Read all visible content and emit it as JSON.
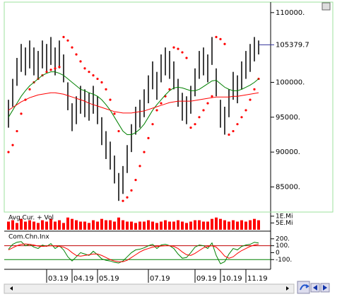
{
  "chart_data": [
    {
      "type": "ohlc",
      "categories": [
        null,
        null,
        null,
        null,
        null,
        null,
        null,
        null,
        null,
        "03.19",
        null,
        null,
        null,
        null,
        null,
        "04.19",
        null,
        null,
        null,
        null,
        null,
        "05.19",
        null,
        null,
        null,
        null,
        null,
        null,
        null,
        null,
        null,
        null,
        null,
        "07.19",
        null,
        null,
        null,
        null,
        null,
        null,
        null,
        null,
        null,
        null,
        "09.19",
        null,
        null,
        null,
        null,
        null,
        "10.19",
        null,
        null,
        null,
        null,
        null,
        "11.19",
        null,
        null,
        null
      ],
      "high": [
        97500,
        100500,
        103500,
        105500,
        105000,
        106000,
        105000,
        104500,
        106000,
        105500,
        106500,
        105000,
        106000,
        104000,
        100000,
        97000,
        98000,
        99500,
        99000,
        98500,
        99500,
        98000,
        95000,
        93000,
        91500,
        89500,
        87000,
        88000,
        91000,
        94000,
        96500,
        97500,
        99000,
        101000,
        103000,
        101500,
        104000,
        105000,
        104500,
        103000,
        100500,
        98500,
        98000,
        99500,
        102000,
        104500,
        105000,
        104000,
        106500,
        102000,
        97500,
        96500,
        99000,
        101500,
        101000,
        103000,
        104500,
        105500,
        106500,
        106000
      ],
      "low": [
        93500,
        96500,
        99500,
        101500,
        101000,
        102000,
        101000,
        100500,
        102000,
        101500,
        102500,
        101000,
        102000,
        100000,
        96000,
        93000,
        94000,
        95500,
        95000,
        94500,
        95500,
        94000,
        91000,
        89000,
        87500,
        85500,
        83000,
        84000,
        87000,
        90000,
        92500,
        93500,
        95000,
        97000,
        99000,
        97500,
        100000,
        101000,
        100500,
        99000,
        96500,
        94500,
        94000,
        95500,
        98000,
        100500,
        101000,
        100000,
        102500,
        98000,
        93500,
        92500,
        95000,
        97500,
        97000,
        99000,
        100500,
        101500,
        103000,
        104000
      ],
      "color": "#000000",
      "series": [
        {
          "color": "#ff0000",
          "marker": "dot",
          "values": [
            90000,
            91000,
            93000,
            95500,
            97500,
            99000,
            100000,
            100500,
            101000,
            101500,
            101800,
            102000,
            102200,
            106500,
            106000,
            105000,
            104000,
            103000,
            102000,
            101500,
            101000,
            100500,
            100000,
            99000,
            97500,
            95500,
            93000,
            83000,
            83500,
            84500,
            86000,
            88000,
            90000,
            92000,
            94000,
            96000,
            97000,
            98000,
            99000,
            105000,
            104800,
            104300,
            103500,
            93500,
            94000,
            95000,
            96000,
            97000,
            98000,
            106500,
            106200,
            105500,
            92500,
            93000,
            94000,
            95000,
            96000,
            97500,
            99000,
            100500
          ]
        },
        {
          "color": "#008000",
          "values": [
            95000,
            96000,
            97000,
            98000,
            98800,
            99500,
            100000,
            100500,
            101000,
            101300,
            101500,
            101500,
            101300,
            101000,
            100500,
            100000,
            99500,
            99000,
            98800,
            98500,
            98300,
            98000,
            97500,
            96800,
            96000,
            95000,
            94000,
            93000,
            92500,
            92500,
            92800,
            93300,
            94000,
            95000,
            96000,
            96800,
            97500,
            98200,
            98800,
            99200,
            99300,
            99200,
            99000,
            98800,
            98800,
            99000,
            99400,
            99800,
            100200,
            100300,
            99800,
            99300,
            99000,
            98800,
            98800,
            99000,
            99300,
            99600,
            100000,
            100500
          ]
        },
        {
          "color": "#ff0000",
          "values": [
            96000,
            96400,
            96800,
            97200,
            97500,
            97800,
            98000,
            98200,
            98300,
            98400,
            98500,
            98500,
            98400,
            98300,
            98100,
            97900,
            97700,
            97500,
            97300,
            97000,
            96800,
            96600,
            96400,
            96200,
            96000,
            95800,
            95700,
            95600,
            95600,
            95600,
            95700,
            95800,
            95900,
            96100,
            96300,
            96500,
            96700,
            96900,
            97100,
            97200,
            97300,
            97300,
            97300,
            97300,
            97400,
            97500,
            97600,
            97700,
            97800,
            97900,
            97900,
            97900,
            97900,
            98000,
            98000,
            98100,
            98200,
            98300,
            98400,
            98500
          ]
        }
      ],
      "last_price": 105379.7,
      "ylim": [
        81500,
        111300
      ],
      "yticks": [
        {
          "value": 110000,
          "label": "110000."
        },
        {
          "value": 100000,
          "label": "100000."
        },
        {
          "value": 95000,
          "label": "95000."
        },
        {
          "value": 90000,
          "label": "90000."
        },
        {
          "value": 85000,
          "label": "85000."
        }
      ]
    },
    {
      "type": "bar",
      "title": "Avg.Cur. + Vol",
      "color": "#ff0000",
      "values": [
        6,
        7,
        5,
        8,
        6,
        7,
        6,
        5,
        7,
        6,
        8,
        6,
        7,
        5,
        9,
        8,
        7,
        6,
        6,
        5,
        7,
        6,
        8,
        7,
        7,
        6,
        9,
        7,
        6,
        6,
        5,
        6,
        6,
        7,
        6,
        5,
        6,
        7,
        6,
        6,
        7,
        6,
        5,
        6,
        7,
        7,
        6,
        6,
        8,
        9,
        8,
        7,
        6,
        7,
        6,
        7,
        6,
        7,
        8,
        7
      ],
      "ylim": [
        0,
        12
      ],
      "yticks": [
        {
          "value": 10,
          "label": "1E.Mi"
        },
        {
          "value": 5,
          "label": "5E.Mi"
        }
      ]
    },
    {
      "type": "line",
      "title": "Com.Chn.Inx",
      "series": [
        {
          "color": "#008000",
          "values": [
            50,
            120,
            150,
            160,
            100,
            120,
            80,
            60,
            110,
            90,
            130,
            60,
            100,
            40,
            -60,
            -120,
            -60,
            0,
            -20,
            -40,
            20,
            -30,
            -90,
            -110,
            -120,
            -140,
            -150,
            -120,
            -60,
            0,
            40,
            50,
            70,
            100,
            120,
            60,
            110,
            120,
            100,
            60,
            -20,
            -80,
            -70,
            0,
            80,
            110,
            100,
            60,
            140,
            -40,
            -160,
            -130,
            -20,
            60,
            40,
            90,
            110,
            120,
            150,
            140
          ]
        },
        {
          "color": "#ff0000",
          "values": [
            40,
            70,
            100,
            120,
            125,
            120,
            110,
            95,
            90,
            95,
            100,
            95,
            90,
            80,
            50,
            0,
            -40,
            -50,
            -40,
            -30,
            -20,
            -20,
            -40,
            -70,
            -100,
            -120,
            -130,
            -130,
            -110,
            -70,
            -30,
            10,
            40,
            60,
            80,
            90,
            95,
            100,
            100,
            90,
            60,
            10,
            -30,
            -40,
            -10,
            30,
            70,
            90,
            100,
            80,
            20,
            -50,
            -80,
            -60,
            -10,
            30,
            60,
            90,
            110,
            120
          ]
        }
      ],
      "levels": [
        {
          "value": 100,
          "color": "#c00000"
        },
        {
          "value": -100,
          "color": "#008000"
        }
      ],
      "ylim": [
        -230,
        290
      ],
      "yticks": [
        {
          "value": 200,
          "label": "200."
        },
        {
          "value": 100,
          "label": "100."
        },
        0,
        {
          "value": -100,
          "label": "-100."
        }
      ]
    }
  ]
}
